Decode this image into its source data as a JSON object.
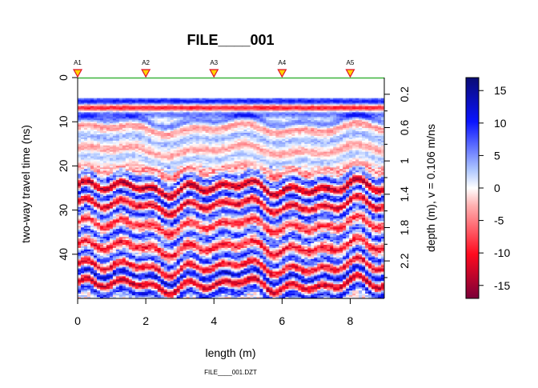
{
  "chart_data": {
    "type": "heatmap",
    "title": "FILE____001",
    "xlabel": "length (m)",
    "ylabel": "two-way travel time (ns)",
    "y2label": "depth (m),  v = 0.106 m/ns",
    "footer": "FILE____001.DZT",
    "xlim": [
      0,
      9
    ],
    "ylim": [
      0,
      50
    ],
    "x_ticks": [
      "0",
      "2",
      "4",
      "6",
      "8"
    ],
    "y_ticks": [
      "0",
      "10",
      "20",
      "30",
      "40"
    ],
    "depth_ticks": [
      "0.2",
      "0.6",
      "1",
      "1.4",
      "1.8",
      "2.2"
    ],
    "depth_tick_values": [
      0.2,
      0.6,
      1.0,
      1.4,
      1.8,
      2.2
    ],
    "depth_minor_values": [
      0.4,
      0.8,
      1.2,
      1.6,
      2.0,
      2.4
    ],
    "velocity_m_per_ns": 0.106,
    "markers": [
      {
        "label": "A1",
        "x": 0
      },
      {
        "label": "A2",
        "x": 2
      },
      {
        "label": "A3",
        "x": 4
      },
      {
        "label": "A4",
        "x": 6
      },
      {
        "label": "A5",
        "x": 8
      }
    ],
    "colorbar": {
      "range": [
        -17,
        17
      ],
      "ticks": [
        "15",
        "10",
        "5",
        "0",
        "-5",
        "-10",
        "-15"
      ],
      "tick_values": [
        15,
        10,
        5,
        0,
        -5,
        -10,
        -15
      ],
      "colors_low_to_high": [
        "#7a0038",
        "#ff0a1e",
        "#ffb0b0",
        "#ffffff",
        "#b0c8ff",
        "#0a14ff",
        "#0a0b74"
      ]
    },
    "reflection_bands_ns": [
      {
        "t": 5.5,
        "amp": 16
      },
      {
        "t": 6.8,
        "amp": -16
      },
      {
        "t": 8.2,
        "amp": 10
      },
      {
        "t": 10.0,
        "amp": 8
      },
      {
        "t": 11.5,
        "amp": -6
      },
      {
        "t": 14.0,
        "amp": 5
      },
      {
        "t": 16.5,
        "amp": -5
      },
      {
        "t": 18.5,
        "amp": 4
      },
      {
        "t": 21.0,
        "amp": -6
      },
      {
        "t": 23.0,
        "amp": 8
      },
      {
        "t": 25.0,
        "amp": -14
      },
      {
        "t": 27.0,
        "amp": 10
      },
      {
        "t": 29.0,
        "amp": -12
      },
      {
        "t": 31.0,
        "amp": 9
      },
      {
        "t": 33.5,
        "amp": -9
      },
      {
        "t": 36.0,
        "amp": 8
      },
      {
        "t": 38.5,
        "amp": -10
      },
      {
        "t": 41.0,
        "amp": 9
      },
      {
        "t": 43.0,
        "amp": -11
      },
      {
        "t": 45.0,
        "amp": 12
      },
      {
        "t": 47.0,
        "amp": -13
      },
      {
        "t": 49.0,
        "amp": 10
      }
    ]
  }
}
